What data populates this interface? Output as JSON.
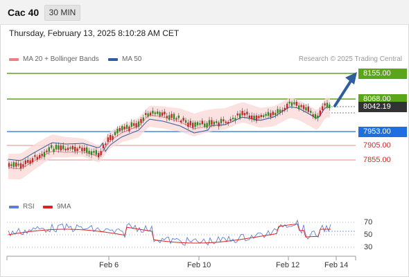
{
  "header": {
    "symbol": "Cac 40",
    "timeframe": "30 MIN",
    "datetime": "Thursday, February 13, 2025 8:10:28 AM CET"
  },
  "legend": {
    "ma20": "MA 20 + Bollinger Bands",
    "ma50": "MA 50",
    "research": "Research © 2025 Trading Central",
    "ma20_color": "#f08080",
    "ma50_color": "#2f5d9e"
  },
  "levels": {
    "target_high": "8155.00",
    "target": "8068.00",
    "last": "8042.19",
    "pivot": "7953.00",
    "support1": "7905.00",
    "support2": "7855.00"
  },
  "colors": {
    "target": "#5aa51a",
    "pivot": "#1e6fe0",
    "support": "#cc2b2b",
    "last": "#333333",
    "arrow": "#2f5d9e",
    "candle_up": "#2e8b1f",
    "candle_down": "#c62828",
    "bollinger": "#fbd9d9"
  },
  "rsi_legend": {
    "rsi": "RSI",
    "ma": "9MA",
    "rsi_color": "#5b7fd6",
    "ma_color": "#e02020"
  },
  "rsi_axis": [
    "70",
    "50",
    "30"
  ],
  "x_axis": [
    "Feb 6",
    "Feb 10",
    "Feb 12",
    "Feb 14"
  ]
}
